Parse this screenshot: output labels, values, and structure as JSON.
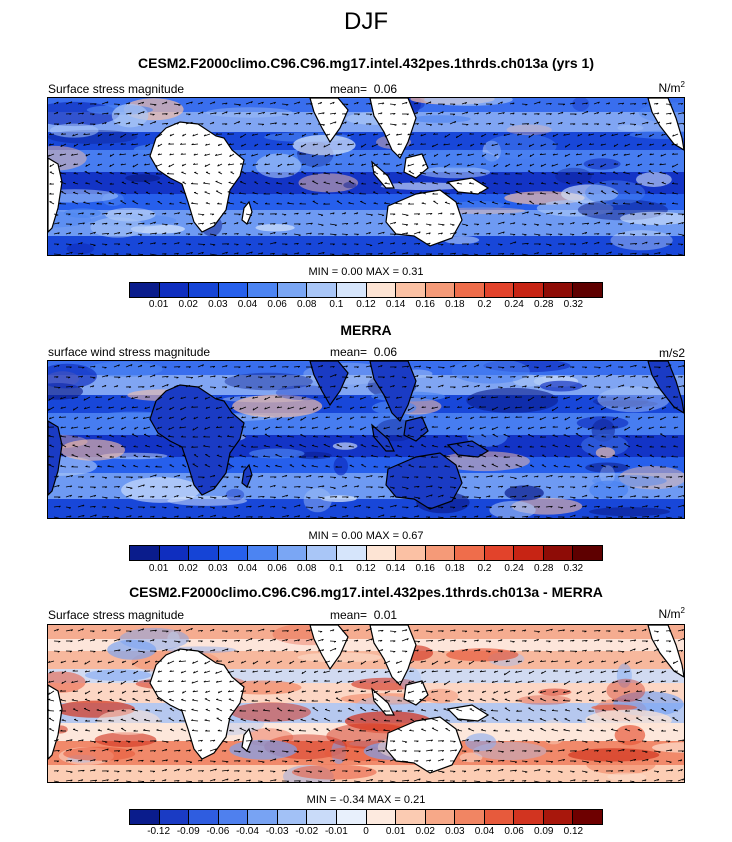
{
  "title": "DJF",
  "panels": [
    {
      "id": "model",
      "header": "CESM2.F2000climo.C96.C96.mg17.intel.432pes.1thrds.ch013a (yrs 1)",
      "left_label": "Surface stress magnitude",
      "mean_label": "mean=",
      "mean_value": "0.06",
      "units_base": "N/m",
      "units_sup": "2",
      "min_label": "MIN =",
      "min_value": "0.00",
      "max_label": "MAX =",
      "max_value": "0.31",
      "colorbar_ticks": [
        "0.01",
        "0.02",
        "0.03",
        "0.04",
        "0.06",
        "0.08",
        "0.1",
        "0.12",
        "0.14",
        "0.16",
        "0.18",
        "0.2",
        "0.24",
        "0.28",
        "0.32"
      ],
      "colorbar_colors": [
        "#0a1c8c",
        "#0f2ebf",
        "#1544d6",
        "#2660ec",
        "#4c84f2",
        "#7aa6f4",
        "#a9c6f7",
        "#d6e5fb",
        "#fde4d4",
        "#fbc1a4",
        "#f59a78",
        "#ef6d4b",
        "#e2432b",
        "#c72414",
        "#8e0c06",
        "#5e0000"
      ]
    },
    {
      "id": "obs",
      "header": "MERRA",
      "left_label": "surface wind stress magnitude",
      "mean_label": "mean=",
      "mean_value": "0.06",
      "units_base": "m/s2",
      "units_sup": "",
      "min_label": "MIN =",
      "min_value": "0.00",
      "max_label": "MAX =",
      "max_value": "0.67",
      "colorbar_ticks": [
        "0.01",
        "0.02",
        "0.03",
        "0.04",
        "0.06",
        "0.08",
        "0.1",
        "0.12",
        "0.14",
        "0.16",
        "0.18",
        "0.2",
        "0.24",
        "0.28",
        "0.32"
      ],
      "colorbar_colors": [
        "#0a1c8c",
        "#0f2ebf",
        "#1544d6",
        "#2660ec",
        "#4c84f2",
        "#7aa6f4",
        "#a9c6f7",
        "#d6e5fb",
        "#fde4d4",
        "#fbc1a4",
        "#f59a78",
        "#ef6d4b",
        "#e2432b",
        "#c72414",
        "#8e0c06",
        "#5e0000"
      ]
    },
    {
      "id": "diff",
      "header": "CESM2.F2000climo.C96.C96.mg17.intel.432pes.1thrds.ch013a - MERRA",
      "left_label": "Surface stress magnitude",
      "mean_label": "mean=",
      "mean_value": "0.01",
      "units_base": "N/m",
      "units_sup": "2",
      "min_label": "MIN =",
      "min_value": "-0.34",
      "max_label": "MAX =",
      "max_value": "0.21",
      "colorbar_ticks": [
        "-0.12",
        "-0.09",
        "-0.06",
        "-0.04",
        "-0.03",
        "-0.02",
        "-0.01",
        "0",
        "0.01",
        "0.02",
        "0.03",
        "0.04",
        "0.06",
        "0.09",
        "0.12"
      ],
      "colorbar_colors": [
        "#0a1c8c",
        "#1a3bc4",
        "#2f5de0",
        "#4f80ee",
        "#78a3f3",
        "#a2c1f6",
        "#c9dbf9",
        "#e8f0fc",
        "#fdeadf",
        "#fbcbb2",
        "#f7a888",
        "#f18563",
        "#e75a3c",
        "#d23420",
        "#a8170c",
        "#6e0000"
      ]
    }
  ],
  "chart_data": {
    "type": "heatmap",
    "season": "DJF",
    "panels": [
      {
        "title": "CESM2.F2000climo.C96.C96.mg17.intel.432pes.1thrds.ch013a (yrs 1)",
        "variable": "Surface stress magnitude",
        "mean": 0.06,
        "min": 0.0,
        "max": 0.31,
        "units": "N/m2"
      },
      {
        "title": "MERRA",
        "variable": "surface wind stress magnitude",
        "mean": 0.06,
        "min": 0.0,
        "max": 0.67,
        "units": "m/s2"
      },
      {
        "title": "CESM2.F2000climo.C96.C96.mg17.intel.432pes.1thrds.ch013a - MERRA",
        "variable": "Surface stress magnitude",
        "mean": 0.01,
        "min": -0.34,
        "max": 0.21,
        "units": "N/m2"
      }
    ],
    "levels_abs": [
      0.01,
      0.02,
      0.03,
      0.04,
      0.06,
      0.08,
      0.1,
      0.12,
      0.14,
      0.16,
      0.18,
      0.2,
      0.24,
      0.28,
      0.32
    ],
    "levels_diff": [
      -0.12,
      -0.09,
      -0.06,
      -0.04,
      -0.03,
      -0.02,
      -0.01,
      0,
      0.01,
      0.02,
      0.03,
      0.04,
      0.06,
      0.09,
      0.12
    ],
    "overlay": "wind stress vectors",
    "land_color": "#ffffff"
  }
}
